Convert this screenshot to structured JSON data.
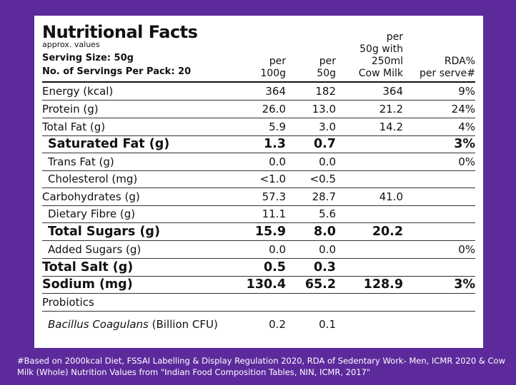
{
  "header": {
    "title": "Nutritional Facts",
    "approx": "approx. values",
    "serving_size": "Serving Size: 50g",
    "servings_per_pack": "No. of Servings Per Pack: 20",
    "columns": [
      {
        "lines": [
          "per",
          "100g"
        ]
      },
      {
        "lines": [
          "per",
          "50g"
        ]
      },
      {
        "lines": [
          "per",
          "50g with",
          "250ml",
          "Cow Milk"
        ]
      },
      {
        "lines": [
          "RDA%",
          "per serve#"
        ]
      }
    ]
  },
  "rows": [
    {
      "label": "Energy (kcal)",
      "v1": "364",
      "v2": "182",
      "v3": "364",
      "v4": "9%"
    },
    {
      "label": "Protein (g)",
      "v1": "26.0",
      "v2": "13.0",
      "v3": "21.2",
      "v4": "24%"
    },
    {
      "label": "Total Fat (g)",
      "v1": "5.9",
      "v2": "3.0",
      "v3": "14.2",
      "v4": "4%"
    },
    {
      "label": "Saturated Fat (g)",
      "v1": "1.3",
      "v2": "0.7",
      "v3": "",
      "v4": "3%"
    },
    {
      "label": "Trans Fat (g)",
      "v1": "0.0",
      "v2": "0.0",
      "v3": "",
      "v4": "0%"
    },
    {
      "label": "Cholesterol (mg)",
      "v1": "<1.0",
      "v2": "<0.5",
      "v3": "",
      "v4": ""
    },
    {
      "label": "Carbohydrates (g)",
      "v1": "57.3",
      "v2": "28.7",
      "v3": "41.0",
      "v4": ""
    },
    {
      "label": "Dietary Fibre (g)",
      "v1": "11.1",
      "v2": "5.6",
      "v3": "",
      "v4": ""
    },
    {
      "label": "Total Sugars (g)",
      "v1": "15.9",
      "v2": "8.0",
      "v3": "20.2",
      "v4": ""
    },
    {
      "label": "Added Sugars (g)",
      "v1": "0.0",
      "v2": "0.0",
      "v3": "",
      "v4": "0%"
    },
    {
      "label": "Total Salt (g)",
      "v1": "0.5",
      "v2": "0.3",
      "v3": "",
      "v4": ""
    },
    {
      "label": "Sodium (mg)",
      "v1": "130.4",
      "v2": "65.2",
      "v3": "128.9",
      "v4": "3%"
    },
    {
      "label": "Probiotics",
      "v1": "",
      "v2": "",
      "v3": "",
      "v4": ""
    },
    {
      "label_italic": "Bacillus Coagulans",
      "label_rest": " (Billion CFU)",
      "v1": "0.2",
      "v2": "0.1",
      "v3": "",
      "v4": ""
    }
  ],
  "footnote": "#Based on 2000kcal Diet, FSSAI Labelling & Display Regulation 2020, RDA of Sedentary Work- Men, ICMR 2020 & Cow Milk (Whole) Nutrition Values from \"Indian Food Composition Tables, NIN, ICMR, 2017\"",
  "colors": {
    "background": "#5d2a9c",
    "panel": "#ffffff",
    "text": "#111111"
  }
}
